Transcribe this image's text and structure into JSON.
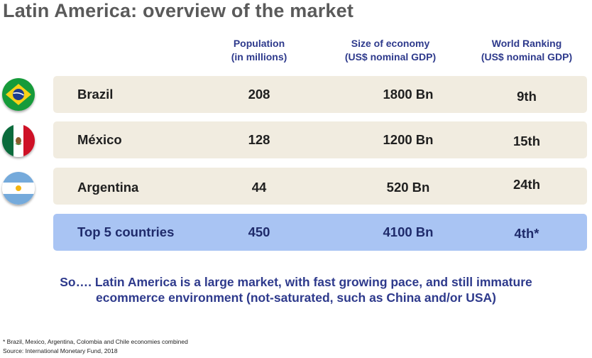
{
  "title": "Latin America: overview of the market",
  "headers": {
    "population": {
      "line1": "Population",
      "line2": "(in millions)"
    },
    "economy": {
      "line1": "Size of economy",
      "line2": "(US$ nominal GDP)"
    },
    "ranking": {
      "line1": "World Ranking",
      "line2": "(US$ nominal GDP)"
    }
  },
  "rows": [
    {
      "country": "Brazil",
      "flag": "brazil-flag-icon",
      "population": "208",
      "economy": "1800 Bn",
      "ranking": "9th"
    },
    {
      "country": "México",
      "flag": "mexico-flag-icon",
      "population": "128",
      "economy": "1200 Bn",
      "ranking": "15th"
    },
    {
      "country": "Argentina",
      "flag": "argentina-flag-icon",
      "population": "44",
      "economy": "520 Bn",
      "ranking": "24th"
    },
    {
      "country": "Top 5 countries",
      "population": "450",
      "economy": "4100 Bn",
      "ranking": "4th*"
    }
  ],
  "summary": {
    "line1": "So…. Latin America is a large market, with fast growing pace, and still immature",
    "line2": "ecommerce environment (not-saturated, such as China and/or USA)"
  },
  "footnotes": {
    "note": "* Brazil, Mexico, Argentina, Colombia and Chile economies combined",
    "source": "Source: International Monetary Fund, 2018"
  },
  "colors": {
    "row_bg": "#f1ece0",
    "total_bg": "#a9c4f3",
    "heading_blue": "#2e3a8c",
    "title_gray": "#5a5a5a"
  }
}
